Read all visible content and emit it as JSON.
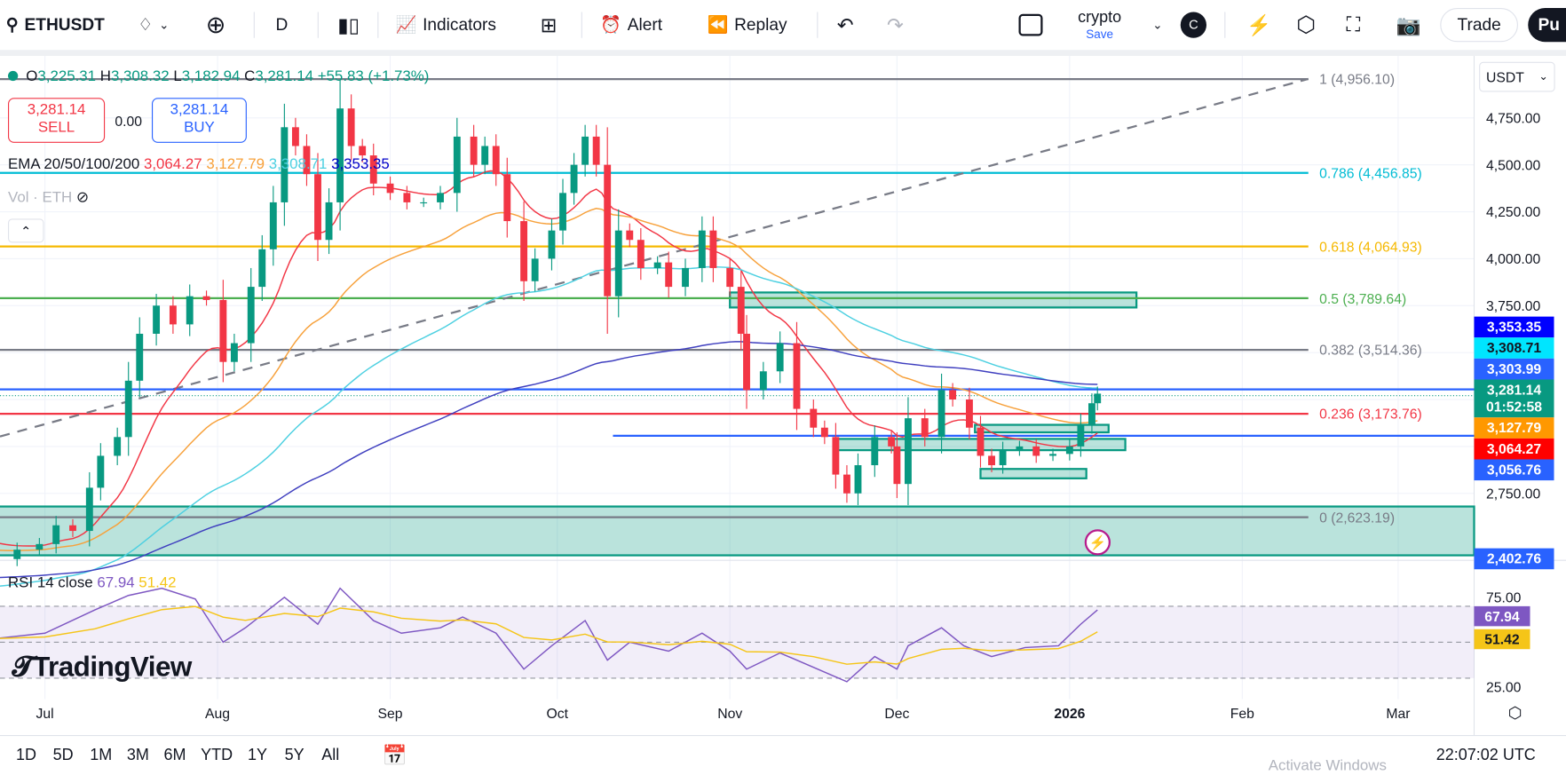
{
  "toolbar": {
    "symbol": "ETHUSDT",
    "interval": "D",
    "indicators": "Indicators",
    "alert": "Alert",
    "replay": "Replay",
    "layout_name": "crypto",
    "layout_sub": "Save",
    "avatar": "C",
    "trade": "Trade",
    "publish": "Pu"
  },
  "legend": {
    "o_label": "O",
    "o": "3,225.31",
    "h_label": "H",
    "h": "3,308.32",
    "l_label": "L",
    "l": "3,182.94",
    "c_label": "C",
    "c": "3,281.14",
    "change": "+55.83 (+1.73%)",
    "sell_price": "3,281.14",
    "sell": "SELL",
    "spread": "0.00",
    "buy_price": "3,281.14",
    "buy": "BUY",
    "ema_label": "EMA 20/50/100/200",
    "ema20": "3,064.27",
    "ema50": "3,127.79",
    "ema100": "3,308.71",
    "ema200": "3,353.35",
    "vol": "Vol · ETH",
    "rsi_label": "RSI 14 close",
    "rsi": "67.94",
    "rsi_ma": "51.42"
  },
  "colors": {
    "up": "#089981",
    "down": "#f23645",
    "ema20": "#f23645",
    "ema50": "#f7a13b",
    "ema100": "#4dd0e1",
    "ema200": "#3f3fbf",
    "rsi": "#7e57c2",
    "rsi_ma": "#f5c518"
  },
  "currency": "USDT",
  "chart_data": {
    "type": "candlestick",
    "symbol": "ETHUSDT",
    "interval": "1D",
    "y_ticks": [
      "4,750.00",
      "4,500.00",
      "4,250.00",
      "4,000.00",
      "3,750.00",
      "2,750.00"
    ],
    "x_ticks": [
      "Jul",
      "Aug",
      "Sep",
      "Oct",
      "Nov",
      "Dec",
      "2026",
      "Feb",
      "Mar"
    ],
    "ylim": [
      2300,
      5000
    ],
    "closes": [
      [
        "2025-06-22",
        2400
      ],
      [
        "2025-06-26",
        2450
      ],
      [
        "2025-06-30",
        2480
      ],
      [
        "2025-07-03",
        2580
      ],
      [
        "2025-07-06",
        2550
      ],
      [
        "2025-07-09",
        2780
      ],
      [
        "2025-07-11",
        2950
      ],
      [
        "2025-07-14",
        3050
      ],
      [
        "2025-07-16",
        3350
      ],
      [
        "2025-07-18",
        3600
      ],
      [
        "2025-07-21",
        3750
      ],
      [
        "2025-07-24",
        3650
      ],
      [
        "2025-07-27",
        3800
      ],
      [
        "2025-07-30",
        3780
      ],
      [
        "2025-08-02",
        3450
      ],
      [
        "2025-08-04",
        3550
      ],
      [
        "2025-08-07",
        3850
      ],
      [
        "2025-08-09",
        4050
      ],
      [
        "2025-08-11",
        4300
      ],
      [
        "2025-08-13",
        4700
      ],
      [
        "2025-08-15",
        4600
      ],
      [
        "2025-08-17",
        4450
      ],
      [
        "2025-08-19",
        4100
      ],
      [
        "2025-08-21",
        4300
      ],
      [
        "2025-08-23",
        4800
      ],
      [
        "2025-08-25",
        4600
      ],
      [
        "2025-08-27",
        4550
      ],
      [
        "2025-08-29",
        4400
      ],
      [
        "2025-09-01",
        4350
      ],
      [
        "2025-09-04",
        4300
      ],
      [
        "2025-09-07",
        4300
      ],
      [
        "2025-09-10",
        4350
      ],
      [
        "2025-09-13",
        4650
      ],
      [
        "2025-09-16",
        4500
      ],
      [
        "2025-09-18",
        4600
      ],
      [
        "2025-09-20",
        4450
      ],
      [
        "2025-09-22",
        4200
      ],
      [
        "2025-09-25",
        3880
      ],
      [
        "2025-09-27",
        4000
      ],
      [
        "2025-09-30",
        4150
      ],
      [
        "2025-10-02",
        4350
      ],
      [
        "2025-10-04",
        4500
      ],
      [
        "2025-10-06",
        4650
      ],
      [
        "2025-10-08",
        4500
      ],
      [
        "2025-10-10",
        3800
      ],
      [
        "2025-10-12",
        4150
      ],
      [
        "2025-10-14",
        4100
      ],
      [
        "2025-10-16",
        3950
      ],
      [
        "2025-10-19",
        3980
      ],
      [
        "2025-10-21",
        3850
      ],
      [
        "2025-10-24",
        3950
      ],
      [
        "2025-10-27",
        4150
      ],
      [
        "2025-10-29",
        3950
      ],
      [
        "2025-11-01",
        3850
      ],
      [
        "2025-11-03",
        3600
      ],
      [
        "2025-11-04",
        3300
      ],
      [
        "2025-11-07",
        3400
      ],
      [
        "2025-11-10",
        3550
      ],
      [
        "2025-11-13",
        3200
      ],
      [
        "2025-11-16",
        3100
      ],
      [
        "2025-11-18",
        3050
      ],
      [
        "2025-11-20",
        2850
      ],
      [
        "2025-11-22",
        2750
      ],
      [
        "2025-11-24",
        2900
      ],
      [
        "2025-11-27",
        3050
      ],
      [
        "2025-11-30",
        3000
      ],
      [
        "2025-12-01",
        2800
      ],
      [
        "2025-12-03",
        3150
      ],
      [
        "2025-12-06",
        3050
      ],
      [
        "2025-12-09",
        3300
      ],
      [
        "2025-12-11",
        3250
      ],
      [
        "2025-12-14",
        3100
      ],
      [
        "2025-12-16",
        2950
      ],
      [
        "2025-12-18",
        2900
      ],
      [
        "2025-12-20",
        2980
      ],
      [
        "2025-12-23",
        3000
      ],
      [
        "2025-12-26",
        2950
      ],
      [
        "2025-12-29",
        2960
      ],
      [
        "2026-01-01",
        3000
      ],
      [
        "2026-01-03",
        3120
      ],
      [
        "2026-01-05",
        3230
      ],
      [
        "2026-01-06",
        3281.14
      ]
    ],
    "fib_levels": [
      {
        "label": "1 (4,956.10)",
        "price": 4956.1,
        "color": "#787b86"
      },
      {
        "label": "0.786 (4,456.85)",
        "price": 4456.85,
        "color": "#00bcd4"
      },
      {
        "label": "0.618 (4,064.93)",
        "price": 4064.93,
        "color": "#f5b800"
      },
      {
        "label": "0.5 (3,789.64)",
        "price": 3789.64,
        "color": "#4caf50"
      },
      {
        "label": "0.382 (3,514.36)",
        "price": 3514.36,
        "color": "#787b86"
      },
      {
        "label": "0.236 (3,173.76)",
        "price": 3173.76,
        "color": "#f23645"
      },
      {
        "label": "0 (2,623.19)",
        "price": 2623.19,
        "color": "#787b86"
      }
    ],
    "price_tags": [
      {
        "text": "3,353.35",
        "price": 3353.35,
        "color": "#0000ff"
      },
      {
        "text": "3,308.71",
        "price": 3308.71,
        "color": "#00e5ff",
        "fg": "#131722"
      },
      {
        "text": "3,303.99",
        "price": 3303.99,
        "color": "#2962ff"
      },
      {
        "text": "3,281.14",
        "sub": "01:52:58",
        "price": 3281.14,
        "color": "#089981"
      },
      {
        "text": "3,127.79",
        "price": 3127.79,
        "color": "#ff9800"
      },
      {
        "text": "3,064.27",
        "price": 3064.27,
        "color": "#ff0000"
      },
      {
        "text": "3,056.76",
        "price": 3056.76,
        "color": "#2962ff"
      },
      {
        "text": "2,402.76",
        "price": 2402.76,
        "color": "#2962ff"
      }
    ],
    "horizontal_lines": [
      {
        "price": 3303.99,
        "from": "2025-06-20",
        "color": "#2962ff"
      },
      {
        "price": 3056.76,
        "from": "2025-10-11",
        "color": "#2962ff"
      }
    ],
    "zones": [
      {
        "from": "2025-06-20",
        "to": "2026-03-25",
        "top": 2680,
        "bottom": 2420
      },
      {
        "from": "2025-11-01",
        "to": "2026-01-13",
        "top": 3820,
        "bottom": 3740
      },
      {
        "from": "2025-11-20",
        "to": "2026-01-11",
        "top": 3040,
        "bottom": 2980
      },
      {
        "from": "2025-12-15",
        "to": "2026-01-08",
        "top": 3115,
        "bottom": 3075
      },
      {
        "from": "2025-12-16",
        "to": "2026-01-04",
        "top": 2880,
        "bottom": 2830
      }
    ],
    "rsi": {
      "y_ticks": [
        "75.00",
        "25.00"
      ],
      "bands": [
        70,
        50,
        30
      ],
      "values": [
        [
          "2025-06-22",
          52
        ],
        [
          "2025-07-01",
          55
        ],
        [
          "2025-07-10",
          68
        ],
        [
          "2025-07-16",
          76
        ],
        [
          "2025-07-22",
          80
        ],
        [
          "2025-07-28",
          74
        ],
        [
          "2025-08-02",
          50
        ],
        [
          "2025-08-06",
          58
        ],
        [
          "2025-08-13",
          75
        ],
        [
          "2025-08-19",
          60
        ],
        [
          "2025-08-23",
          80
        ],
        [
          "2025-08-29",
          62
        ],
        [
          "2025-09-03",
          55
        ],
        [
          "2025-09-10",
          58
        ],
        [
          "2025-09-14",
          64
        ],
        [
          "2025-09-20",
          55
        ],
        [
          "2025-09-25",
          35
        ],
        [
          "2025-09-30",
          48
        ],
        [
          "2025-10-06",
          62
        ],
        [
          "2025-10-10",
          40
        ],
        [
          "2025-10-14",
          50
        ],
        [
          "2025-10-21",
          45
        ],
        [
          "2025-10-27",
          55
        ],
        [
          "2025-11-01",
          45
        ],
        [
          "2025-11-04",
          35
        ],
        [
          "2025-11-10",
          44
        ],
        [
          "2025-11-16",
          36
        ],
        [
          "2025-11-22",
          28
        ],
        [
          "2025-11-27",
          42
        ],
        [
          "2025-12-01",
          35
        ],
        [
          "2025-12-03",
          48
        ],
        [
          "2025-12-09",
          58
        ],
        [
          "2025-12-13",
          48
        ],
        [
          "2025-12-18",
          42
        ],
        [
          "2025-12-24",
          47
        ],
        [
          "2025-12-30",
          48
        ],
        [
          "2026-01-03",
          60
        ],
        [
          "2026-01-06",
          67.94
        ]
      ]
    }
  },
  "bottom": {
    "ranges": [
      "1D",
      "5D",
      "1M",
      "3M",
      "6M",
      "YTD",
      "1Y",
      "5Y",
      "All"
    ],
    "clock": "22:07:02 UTC",
    "watermark": "Activate Windows"
  },
  "logo": "TradingView"
}
